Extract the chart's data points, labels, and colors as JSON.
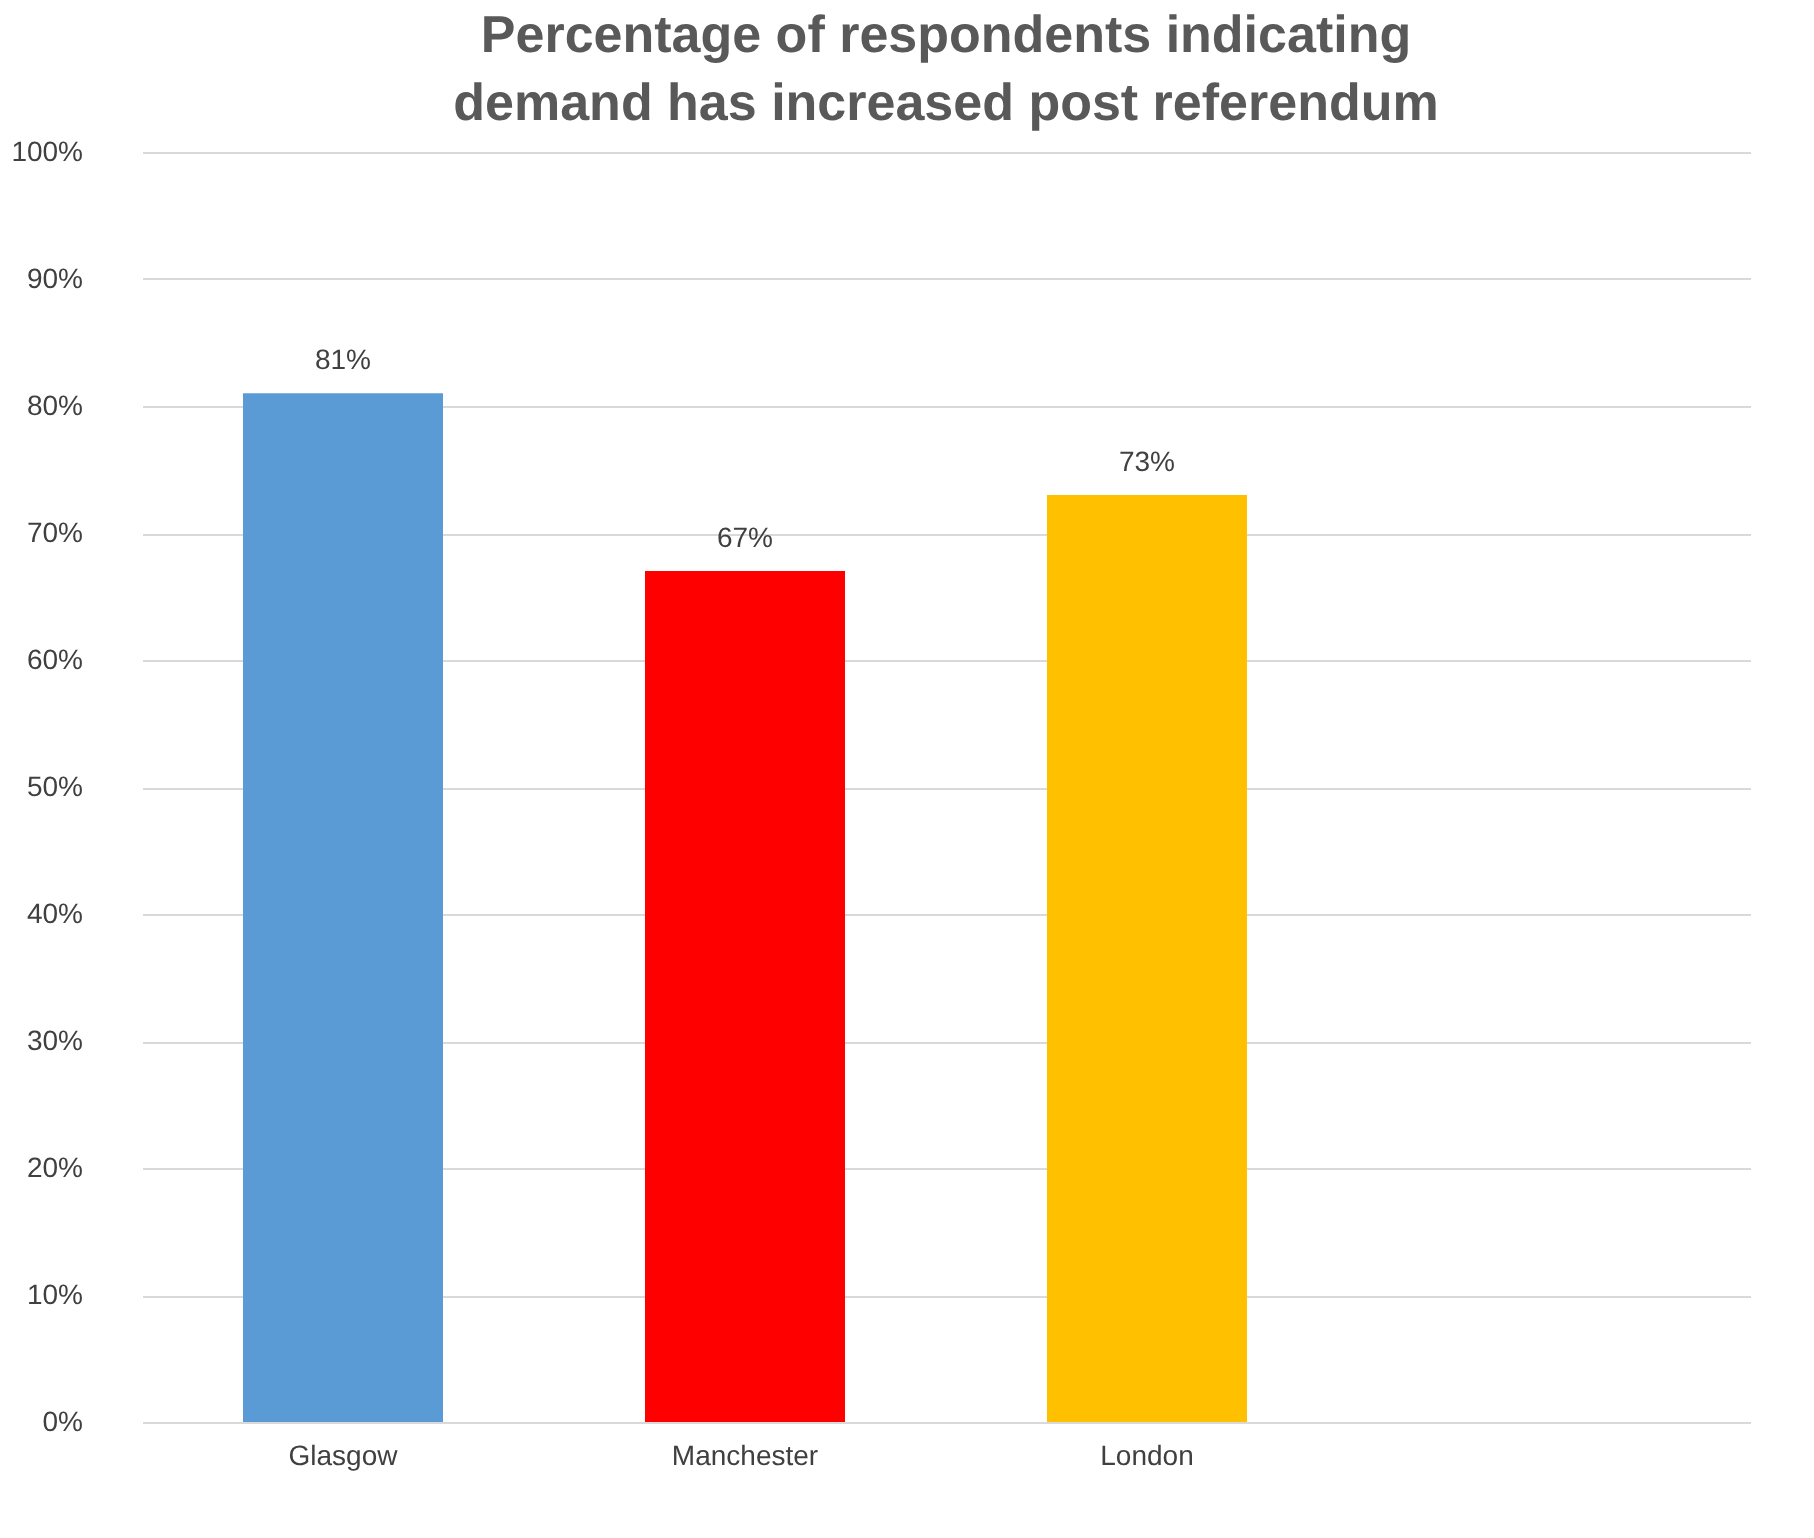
{
  "chart_data": {
    "type": "bar",
    "title": "Percentage of respondents indicating demand has increased post referendum",
    "categories": [
      "Glasgow",
      "Manchester",
      "London",
      null
    ],
    "values": [
      81,
      67,
      73,
      null
    ],
    "colors": [
      "#5b9bd5",
      "#ff0000",
      "#ffc000",
      "#ffffff"
    ],
    "value_labels": [
      "81%",
      "67%",
      "73%",
      null
    ],
    "ylim": [
      0,
      100
    ],
    "yticks": [
      {
        "value": 0,
        "label": "0%"
      },
      {
        "value": 10,
        "label": "10%"
      },
      {
        "value": 20,
        "label": "20%"
      },
      {
        "value": 30,
        "label": "30%"
      },
      {
        "value": 40,
        "label": "40%"
      },
      {
        "value": 50,
        "label": "50%"
      },
      {
        "value": 60,
        "label": "60%"
      },
      {
        "value": 70,
        "label": "70%"
      },
      {
        "value": 80,
        "label": "80%"
      },
      {
        "value": 90,
        "label": "90%"
      },
      {
        "value": 100,
        "label": "100%"
      }
    ],
    "grid": "y",
    "legend": false
  }
}
